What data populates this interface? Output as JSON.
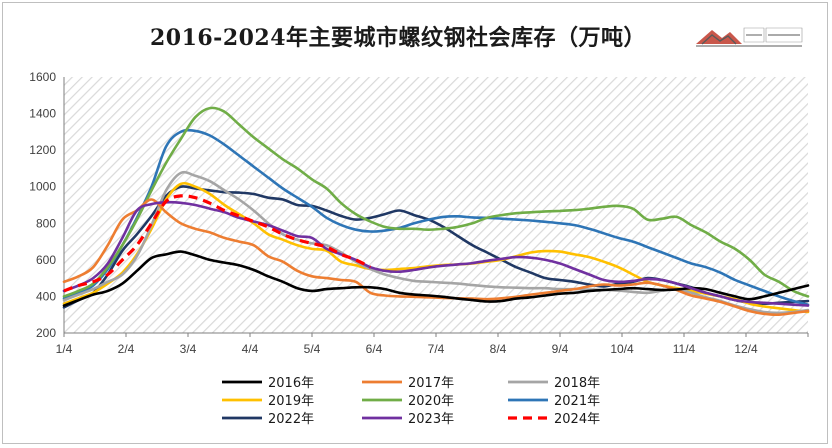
{
  "chart_data": {
    "type": "line",
    "title": "2016-2024年主要城市螺纹钢社会库存（万吨）",
    "xlabel": "",
    "ylabel": "",
    "ylim": [
      200,
      1600
    ],
    "yticks": [
      200,
      400,
      600,
      800,
      1000,
      1200,
      1400,
      1600
    ],
    "xticks": [
      "1/4",
      "2/4",
      "3/4",
      "4/4",
      "5/4",
      "6/4",
      "7/4",
      "8/4",
      "9/4",
      "10/4",
      "11/4",
      "12/4"
    ],
    "x_unit": "week of year",
    "grid": false,
    "background": "hatched",
    "legend_position": "bottom",
    "series": [
      {
        "name": "2016年",
        "color": "#000000",
        "dashed": false,
        "x": [
          0,
          1,
          2,
          3,
          4,
          5,
          6,
          7,
          8,
          9,
          10,
          11,
          12,
          13,
          14,
          15,
          16,
          17,
          18,
          19,
          20,
          21,
          22,
          23,
          24,
          25,
          26,
          27,
          28,
          29,
          30,
          31,
          32,
          33,
          34,
          35,
          36,
          37,
          38,
          39,
          40,
          41,
          42,
          43,
          44,
          45,
          46,
          47,
          48,
          49,
          50,
          51
        ],
        "values": [
          350,
          380,
          410,
          430,
          470,
          540,
          610,
          630,
          645,
          625,
          600,
          585,
          570,
          545,
          510,
          480,
          445,
          430,
          440,
          445,
          450,
          450,
          440,
          420,
          410,
          405,
          398,
          388,
          380,
          372,
          375,
          388,
          395,
          405,
          415,
          420,
          430,
          435,
          440,
          445,
          440,
          435,
          438,
          445,
          440,
          420,
          400,
          385,
          400,
          420,
          440,
          460
        ]
      },
      {
        "name": "2017年",
        "color": "#ed7d31",
        "dashed": false,
        "x": [
          0,
          1,
          2,
          3,
          4,
          5,
          6,
          7,
          8,
          9,
          10,
          11,
          12,
          13,
          14,
          15,
          16,
          17,
          18,
          19,
          20,
          21,
          22,
          23,
          24,
          25,
          26,
          27,
          28,
          29,
          30,
          31,
          32,
          33,
          34,
          35,
          36,
          37,
          38,
          39,
          40,
          41,
          42,
          43,
          44,
          45,
          46,
          47,
          48,
          49,
          50,
          51
        ],
        "values": [
          480,
          510,
          560,
          680,
          820,
          870,
          930,
          860,
          800,
          770,
          750,
          720,
          700,
          680,
          620,
          590,
          540,
          510,
          500,
          490,
          480,
          420,
          405,
          400,
          398,
          395,
          392,
          390,
          388,
          385,
          390,
          398,
          410,
          420,
          430,
          440,
          455,
          465,
          460,
          465,
          475,
          460,
          435,
          405,
          388,
          370,
          345,
          320,
          305,
          300,
          310,
          320
        ]
      },
      {
        "name": "2018年",
        "color": "#a5a5a5",
        "dashed": false,
        "x": [
          0,
          1,
          2,
          3,
          4,
          5,
          6,
          7,
          8,
          9,
          10,
          11,
          12,
          13,
          14,
          15,
          16,
          17,
          18,
          19,
          20,
          21,
          22,
          23,
          24,
          25,
          26,
          27,
          28,
          29,
          30,
          31,
          32,
          33,
          34,
          35,
          36,
          37,
          38,
          39,
          40,
          41,
          42,
          43,
          44,
          45,
          46,
          47,
          48,
          49,
          50,
          51
        ],
        "values": [
          380,
          410,
          440,
          480,
          520,
          620,
          790,
          980,
          1075,
          1060,
          1030,
          980,
          930,
          870,
          800,
          740,
          710,
          690,
          680,
          640,
          590,
          550,
          520,
          500,
          485,
          480,
          475,
          470,
          462,
          455,
          450,
          448,
          445,
          445,
          440,
          440,
          438,
          436,
          432,
          425,
          420,
          432,
          440,
          420,
          395,
          375,
          350,
          330,
          315,
          310,
          315,
          325
        ]
      },
      {
        "name": "2019年",
        "color": "#ffc000",
        "dashed": false,
        "x": [
          0,
          1,
          2,
          3,
          4,
          5,
          6,
          7,
          8,
          9,
          10,
          11,
          12,
          13,
          14,
          15,
          16,
          17,
          18,
          19,
          20,
          21,
          22,
          23,
          24,
          25,
          26,
          27,
          28,
          29,
          30,
          31,
          32,
          33,
          34,
          35,
          36,
          37,
          38,
          39,
          40,
          41,
          42,
          43,
          44,
          45,
          46,
          47,
          48,
          49,
          50,
          51
        ],
        "values": [
          360,
          390,
          420,
          470,
          530,
          630,
          770,
          930,
          1015,
          1000,
          960,
          900,
          850,
          800,
          740,
          710,
          680,
          660,
          650,
          590,
          570,
          550,
          545,
          550,
          555,
          565,
          572,
          575,
          580,
          590,
          600,
          620,
          640,
          648,
          645,
          630,
          615,
          590,
          560,
          520,
          480,
          460,
          445,
          430,
          415,
          400,
          385,
          360,
          345,
          335,
          325,
          315
        ]
      },
      {
        "name": "2020年",
        "color": "#70ad47",
        "dashed": false,
        "x": [
          0,
          1,
          2,
          3,
          4,
          5,
          6,
          7,
          8,
          9,
          10,
          11,
          12,
          13,
          14,
          15,
          16,
          17,
          18,
          19,
          20,
          21,
          22,
          23,
          24,
          25,
          26,
          27,
          28,
          29,
          30,
          31,
          32,
          33,
          34,
          35,
          36,
          37,
          38,
          39,
          40,
          41,
          42,
          43,
          44,
          45,
          46,
          47,
          48,
          49,
          50,
          51
        ],
        "values": [
          400,
          430,
          470,
          560,
          680,
          820,
          980,
          1130,
          1260,
          1380,
          1430,
          1410,
          1340,
          1270,
          1210,
          1150,
          1100,
          1040,
          990,
          910,
          850,
          810,
          780,
          770,
          770,
          765,
          770,
          780,
          800,
          830,
          845,
          855,
          860,
          865,
          868,
          872,
          880,
          890,
          895,
          880,
          820,
          825,
          835,
          790,
          750,
          700,
          660,
          600,
          520,
          480,
          430,
          400
        ]
      },
      {
        "name": "2021年",
        "color": "#2e75b6",
        "dashed": false,
        "x": [
          0,
          1,
          2,
          3,
          4,
          5,
          6,
          7,
          8,
          9,
          10,
          11,
          12,
          13,
          14,
          15,
          16,
          17,
          18,
          19,
          20,
          21,
          22,
          23,
          24,
          25,
          26,
          27,
          28,
          29,
          30,
          31,
          32,
          33,
          34,
          35,
          36,
          37,
          38,
          39,
          40,
          41,
          42,
          43,
          44,
          45,
          46,
          47,
          48,
          49,
          50,
          51
        ],
        "values": [
          390,
          420,
          460,
          550,
          680,
          830,
          1000,
          1220,
          1300,
          1305,
          1280,
          1230,
          1170,
          1110,
          1050,
          990,
          940,
          890,
          830,
          790,
          765,
          755,
          760,
          775,
          800,
          820,
          835,
          838,
          832,
          830,
          825,
          820,
          815,
          808,
          800,
          790,
          770,
          745,
          720,
          700,
          670,
          640,
          610,
          580,
          560,
          530,
          490,
          460,
          430,
          400,
          375,
          355
        ]
      },
      {
        "name": "2022年",
        "color": "#203864",
        "dashed": false,
        "x": [
          0,
          1,
          2,
          3,
          4,
          5,
          6,
          7,
          8,
          9,
          10,
          11,
          12,
          13,
          14,
          15,
          16,
          17,
          18,
          19,
          20,
          21,
          22,
          23,
          24,
          25,
          26,
          27,
          28,
          29,
          30,
          31,
          32,
          33,
          34,
          35,
          36,
          37,
          38,
          39,
          40,
          41,
          42,
          43,
          44,
          45,
          46,
          47,
          48,
          49,
          50,
          51
        ],
        "values": [
          340,
          380,
          420,
          520,
          650,
          740,
          840,
          950,
          1000,
          990,
          980,
          970,
          968,
          960,
          940,
          930,
          900,
          895,
          870,
          840,
          820,
          830,
          850,
          870,
          845,
          820,
          780,
          730,
          680,
          640,
          600,
          560,
          530,
          500,
          490,
          480,
          465,
          455,
          470,
          480,
          500,
          490,
          470,
          450,
          420,
          400,
          380,
          365,
          360,
          365,
          370,
          375
        ]
      },
      {
        "name": "2023年",
        "color": "#7030a0",
        "dashed": false,
        "x": [
          0,
          1,
          2,
          3,
          4,
          5,
          6,
          7,
          8,
          9,
          10,
          11,
          12,
          13,
          14,
          15,
          16,
          17,
          18,
          19,
          20,
          21,
          22,
          23,
          24,
          25,
          26,
          27,
          28,
          29,
          30,
          31,
          32,
          33,
          34,
          35,
          36,
          37,
          38,
          39,
          40,
          41,
          42,
          43,
          44,
          45,
          46,
          47,
          48,
          49,
          50,
          51
        ],
        "values": [
          430,
          460,
          500,
          580,
          720,
          870,
          905,
          915,
          912,
          900,
          880,
          860,
          830,
          810,
          790,
          760,
          730,
          720,
          660,
          630,
          600,
          560,
          540,
          535,
          545,
          558,
          568,
          575,
          582,
          595,
          605,
          615,
          612,
          600,
          580,
          550,
          520,
          490,
          480,
          485,
          495,
          490,
          470,
          445,
          420,
          400,
          380,
          370,
          365,
          360,
          355,
          350
        ]
      },
      {
        "name": "2024年",
        "color": "#ff0000",
        "dashed": true,
        "x": [
          0,
          1,
          2,
          3,
          4,
          5,
          6,
          7,
          8,
          9,
          10,
          11,
          12,
          13,
          14,
          15,
          16,
          17,
          18,
          19,
          20,
          21
        ],
        "values": [
          430,
          460,
          480,
          520,
          600,
          680,
          800,
          920,
          950,
          940,
          910,
          870,
          840,
          810,
          780,
          740,
          710,
          690,
          670,
          630,
          600,
          560
        ]
      }
    ]
  }
}
